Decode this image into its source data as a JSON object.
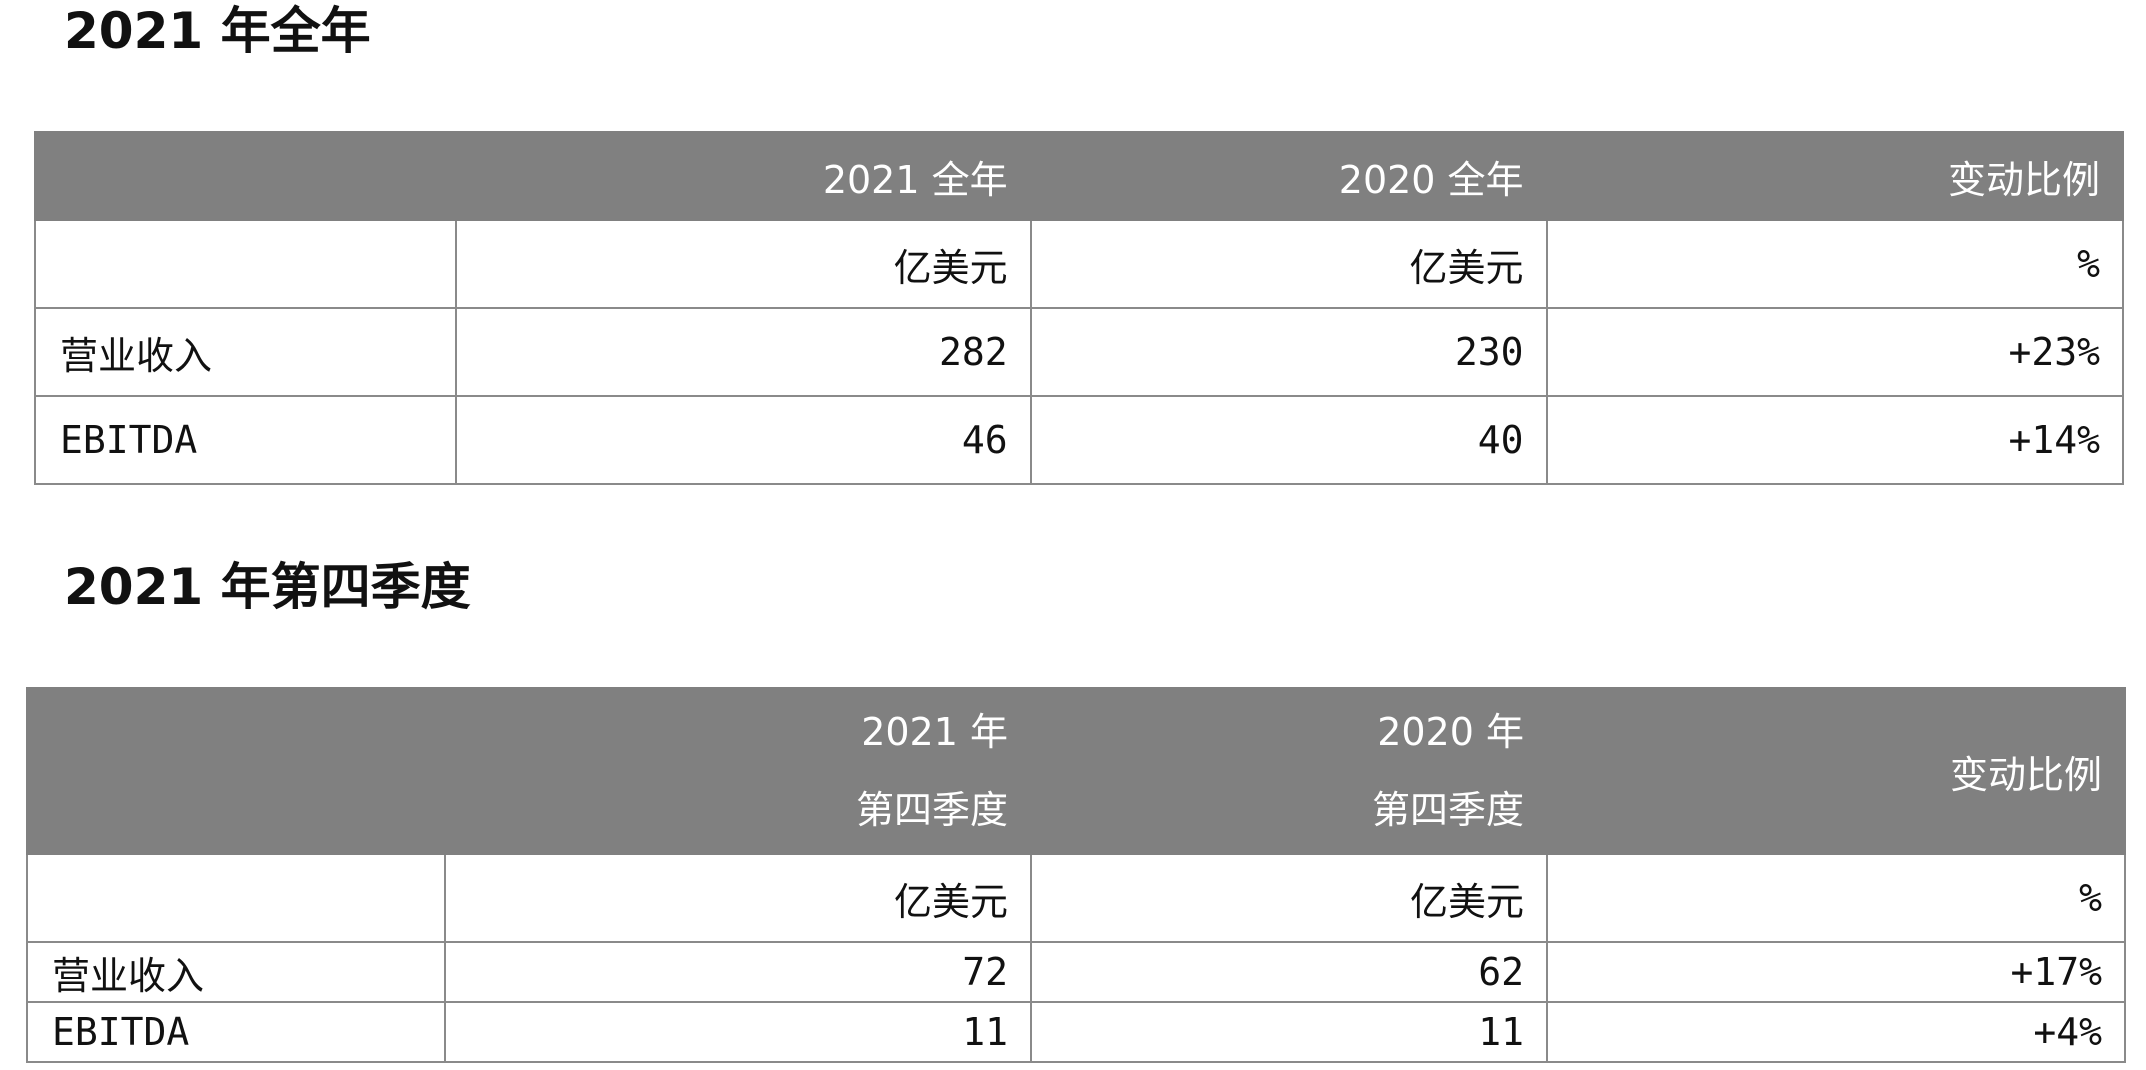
{
  "full_year": {
    "title": "2021 年全年",
    "headers": [
      "",
      "2021 全年",
      "2020 全年",
      "变动比例"
    ],
    "units": [
      "",
      "亿美元",
      "亿美元",
      "%"
    ],
    "rows": [
      {
        "label": "营业收入",
        "v2021": "282",
        "v2020": "230",
        "change": "+23%"
      },
      {
        "label": "EBITDA",
        "v2021": "46",
        "v2020": "40",
        "change": "+14%"
      }
    ]
  },
  "q4": {
    "title": "2021 年第四季度",
    "headers": [
      {
        "line1": "",
        "line2": ""
      },
      {
        "line1": "2021 年",
        "line2": "第四季度"
      },
      {
        "line1": "2020 年",
        "line2": "第四季度"
      },
      {
        "line1": "变动比例",
        "line2": ""
      }
    ],
    "units": [
      "",
      "亿美元",
      "亿美元",
      "%"
    ],
    "rows": [
      {
        "label": "营业收入",
        "v2021": "72",
        "v2020": "62",
        "change": "+17%"
      },
      {
        "label": "EBITDA",
        "v2021": "11",
        "v2020": "11",
        "change": "+4%"
      }
    ]
  },
  "colors": {
    "header_bg": "#808080",
    "header_text": "#ffffff",
    "border": "#8a8a8a"
  }
}
